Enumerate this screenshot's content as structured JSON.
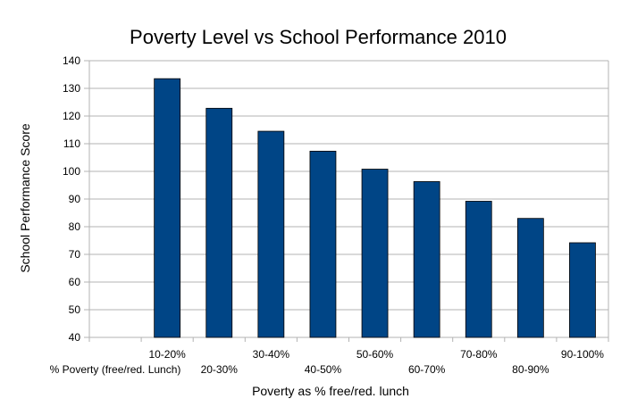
{
  "chart_data": {
    "type": "bar",
    "title": "Poverty Level vs School Performance 2010",
    "xlabel": "Poverty as % free/red. lunch",
    "ylabel": "School Performance Score",
    "categories": [
      "% Poverty (free/red. Lunch)",
      "10-20%",
      "20-30%",
      "30-40%",
      "40-50%",
      "50-60%",
      "60-70%",
      "70-80%",
      "80-90%",
      "90-100%"
    ],
    "values": [
      null,
      133.5,
      122.8,
      114.5,
      107.3,
      100.8,
      96.3,
      89.2,
      83.0,
      74.2
    ],
    "ylim": [
      40,
      140
    ],
    "yticks": [
      40,
      50,
      60,
      70,
      80,
      90,
      100,
      110,
      120,
      130,
      140
    ],
    "grid": true,
    "bar_color": "#004586",
    "grid_color": "#b3b3b3"
  }
}
